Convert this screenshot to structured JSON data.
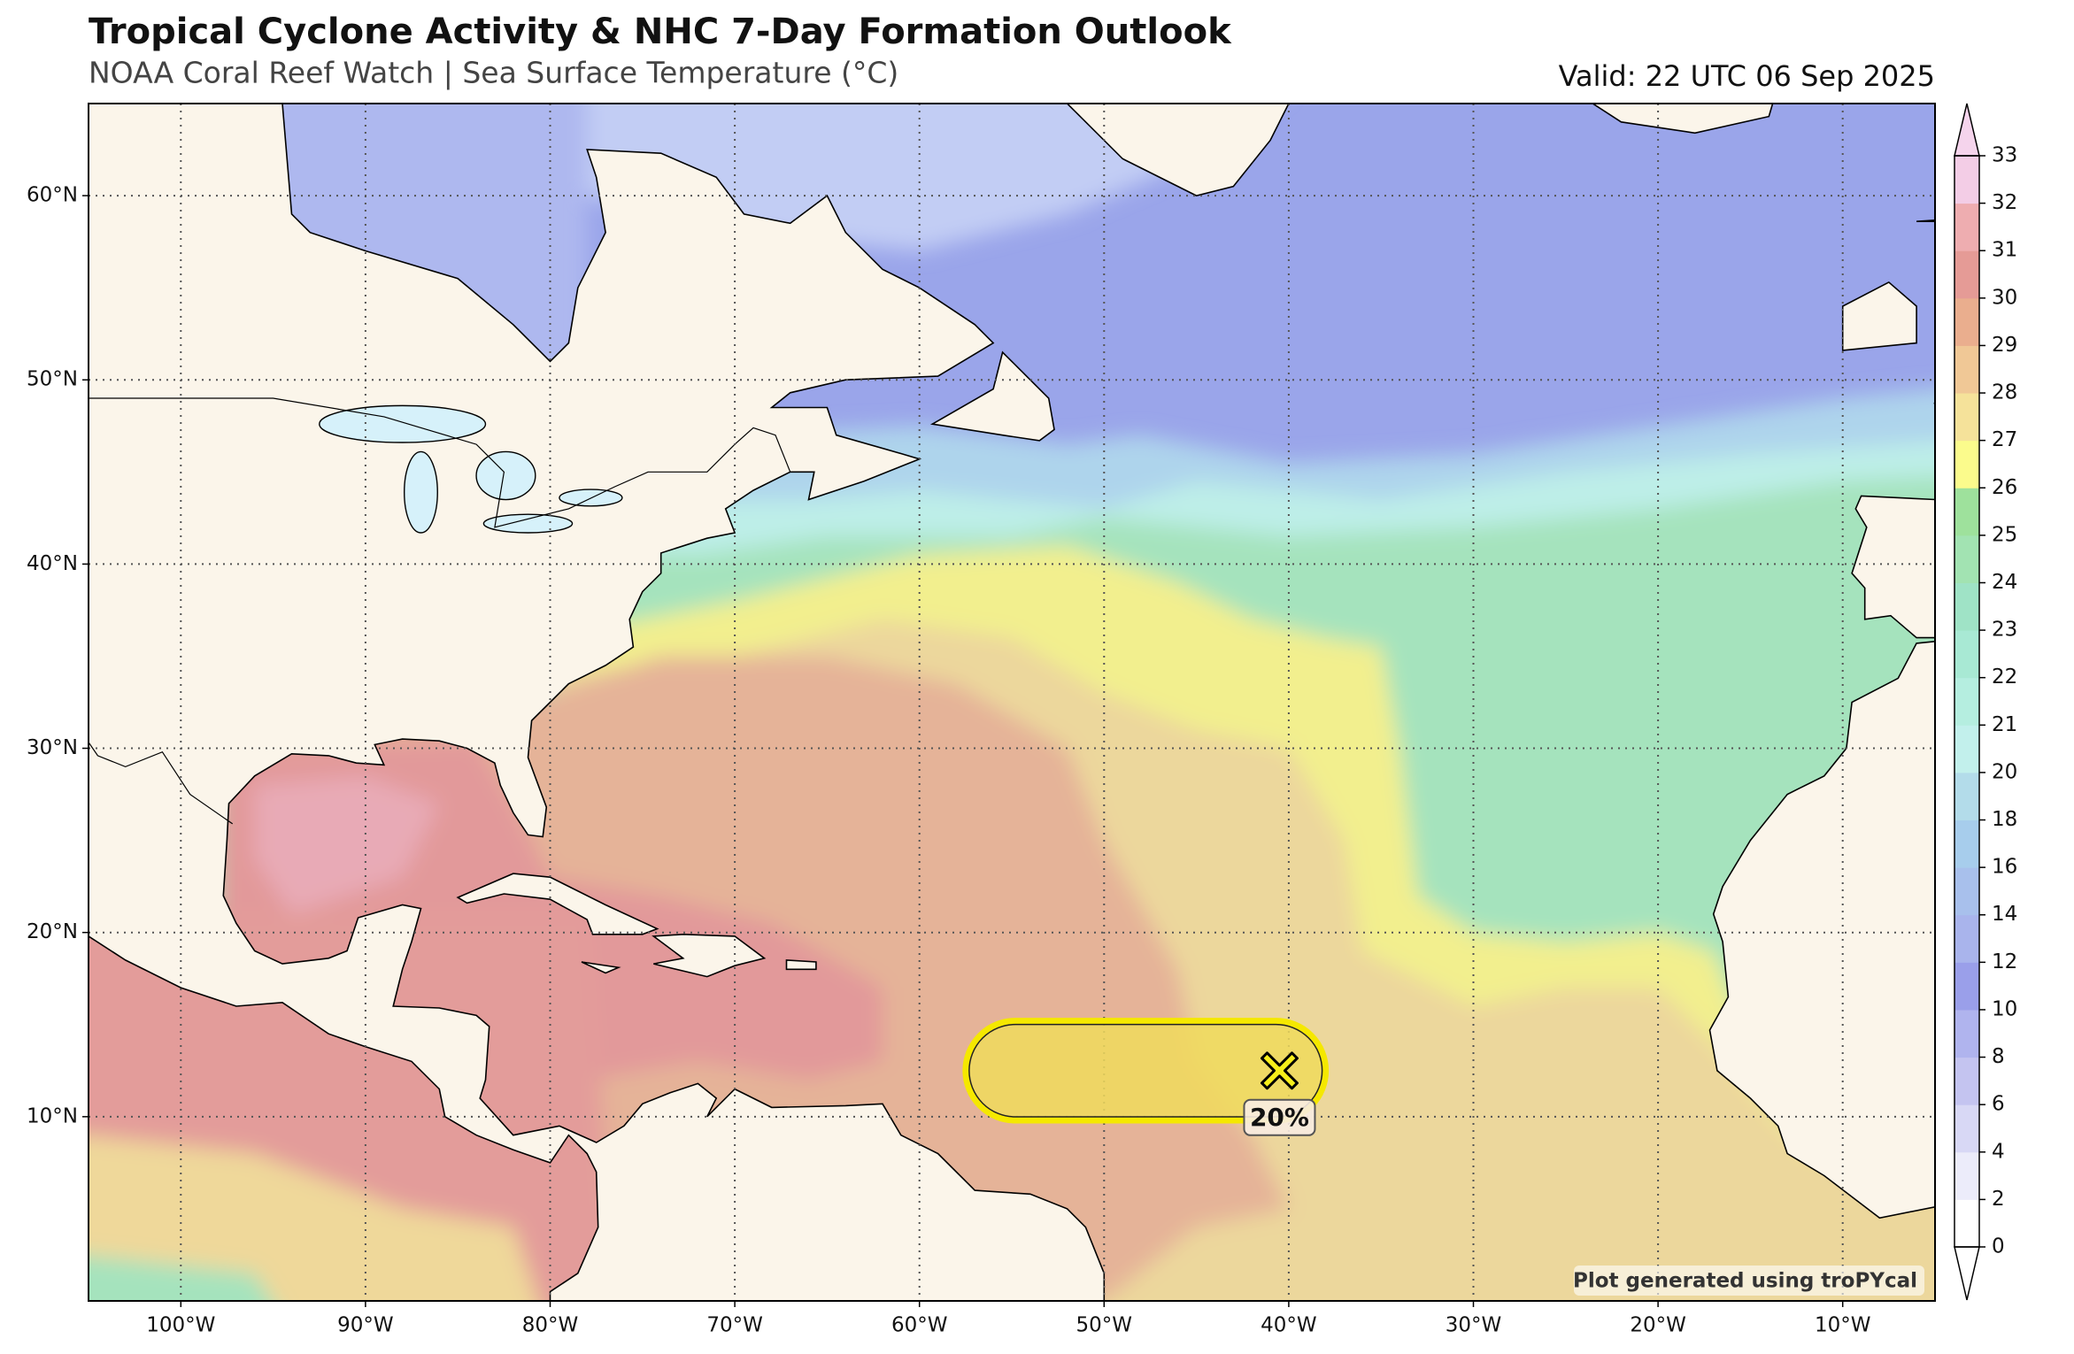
{
  "header": {
    "title": "Tropical Cyclone Activity & NHC 7-Day Formation Outlook",
    "subtitle": "NOAA Coral Reef Watch | Sea Surface Temperature (°C)",
    "valid": "Valid: 22 UTC 06 Sep 2025"
  },
  "map": {
    "xlim": [
      -105,
      -5
    ],
    "ylim": [
      0,
      65
    ],
    "grid": true,
    "lon_ticks": [
      {
        "value": -100,
        "label": "100°W"
      },
      {
        "value": -90,
        "label": "90°W"
      },
      {
        "value": -80,
        "label": "80°W"
      },
      {
        "value": -70,
        "label": "70°W"
      },
      {
        "value": -60,
        "label": "60°W"
      },
      {
        "value": -50,
        "label": "50°W"
      },
      {
        "value": -40,
        "label": "40°W"
      },
      {
        "value": -30,
        "label": "30°W"
      },
      {
        "value": -20,
        "label": "20°W"
      },
      {
        "value": -10,
        "label": "10°W"
      }
    ],
    "lat_ticks": [
      {
        "value": 10,
        "label": "10°N"
      },
      {
        "value": 20,
        "label": "20°N"
      },
      {
        "value": 30,
        "label": "30°N"
      },
      {
        "value": 40,
        "label": "40°N"
      },
      {
        "value": 50,
        "label": "50°N"
      },
      {
        "value": 60,
        "label": "60°N"
      }
    ]
  },
  "colorbar": {
    "ticks": [
      0,
      2,
      4,
      6,
      8,
      10,
      12,
      14,
      16,
      18,
      20,
      21,
      22,
      23,
      24,
      25,
      26,
      27,
      28,
      29,
      30,
      31,
      32,
      33
    ],
    "colors": [
      "#ffffff",
      "#ececfa",
      "#d8d8f5",
      "#c4c4f0",
      "#b0b4ee",
      "#9a9fea",
      "#a9b4ec",
      "#a8c0ec",
      "#a7cdec",
      "#b3dcea",
      "#c2f0ec",
      "#b5eee0",
      "#a8e9d4",
      "#9fe3c6",
      "#a2e3b2",
      "#9ee19c",
      "#fbfb8c",
      "#f5e29a",
      "#f0c896",
      "#eaae8e",
      "#e59b96",
      "#eeadb0",
      "#f3cde6"
    ],
    "under_color": "#ffffff",
    "over_color": "#f5d4ec"
  },
  "outlook": {
    "label": "20%",
    "lon": -40.5,
    "lat": 12.5,
    "color": "#f0da5c"
  },
  "credit": "Plot generated using troPYcal"
}
